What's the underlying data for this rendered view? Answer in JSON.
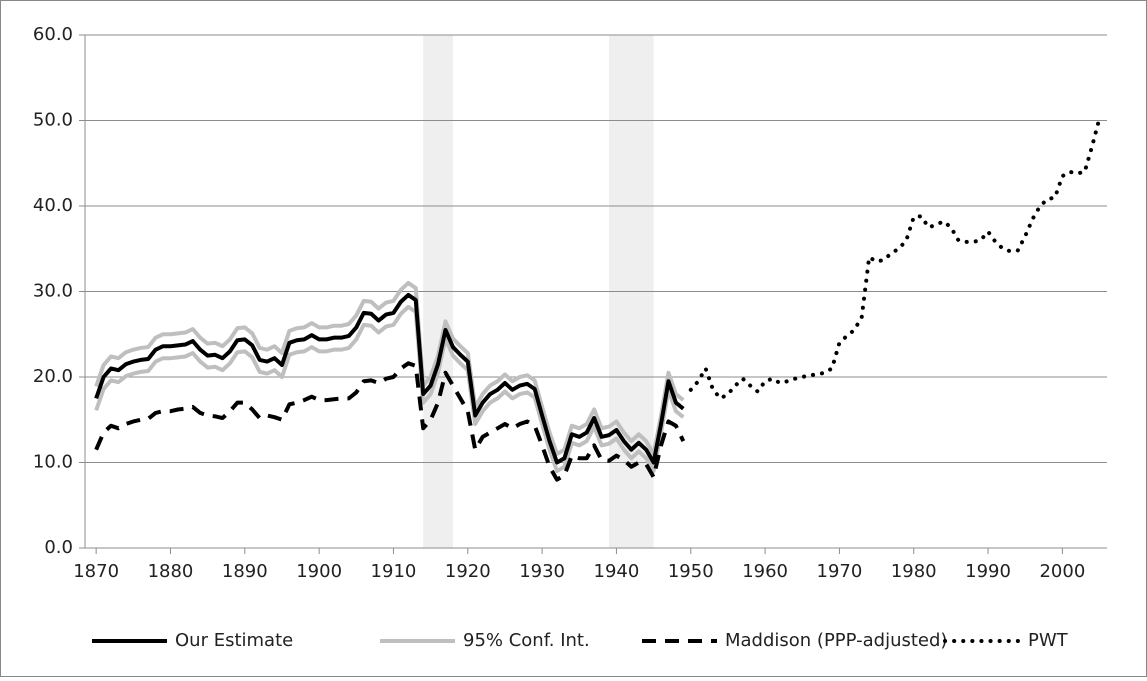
{
  "chart_data": {
    "type": "line",
    "xlim": [
      1868.5,
      2006
    ],
    "xticks": [
      1870,
      1880,
      1890,
      1900,
      1910,
      1920,
      1930,
      1940,
      1950,
      1960,
      1970,
      1980,
      1990,
      2000
    ],
    "ylim": [
      0,
      60
    ],
    "yticks": [
      {
        "value": 0,
        "label": "0.0"
      },
      {
        "value": 10,
        "label": "10.0"
      },
      {
        "value": 20,
        "label": "20.0"
      },
      {
        "value": 30,
        "label": "30.0"
      },
      {
        "value": 40,
        "label": "40.0"
      },
      {
        "value": 50,
        "label": "50.0"
      },
      {
        "value": 60,
        "label": "60.0"
      }
    ],
    "grid": true,
    "legend": "bottom",
    "shaded_periods": [
      [
        1914,
        1918
      ],
      [
        1939,
        1945
      ]
    ],
    "shade_color": "#efefef",
    "series": [
      {
        "name": "95% Conf. Int.",
        "color": "#bfbfbf",
        "style": "solid",
        "x": [
          1870,
          1871,
          1872,
          1873,
          1874,
          1875,
          1876,
          1877,
          1878,
          1879,
          1880,
          1881,
          1882,
          1883,
          1884,
          1885,
          1886,
          1887,
          1888,
          1889,
          1890,
          1891,
          1892,
          1893,
          1894,
          1895,
          1896,
          1897,
          1898,
          1899,
          1900,
          1901,
          1902,
          1903,
          1904,
          1905,
          1906,
          1907,
          1908,
          1909,
          1910,
          1911,
          1912,
          1913,
          1914,
          1915,
          1916,
          1917,
          1918,
          1919,
          1920,
          1921,
          1922,
          1923,
          1924,
          1925,
          1926,
          1927,
          1928,
          1929,
          1930,
          1931,
          1932,
          1933,
          1934,
          1935,
          1936,
          1937,
          1938,
          1939,
          1940,
          1941,
          1942,
          1943,
          1944,
          1945,
          1946,
          1947,
          1948,
          1949
        ],
        "upper": [
          18.9,
          21.4,
          22.4,
          22.2,
          22.9,
          23.2,
          23.4,
          23.5,
          24.6,
          25,
          25,
          25.1,
          25.2,
          25.6,
          24.6,
          23.9,
          24,
          23.6,
          24.4,
          25.7,
          25.8,
          25.1,
          23.4,
          23.2,
          23.6,
          22.8,
          25.4,
          25.7,
          25.8,
          26.3,
          25.8,
          25.8,
          26,
          26,
          26.2,
          27.2,
          28.9,
          28.8,
          28,
          28.7,
          28.9,
          30.2,
          31,
          30.4,
          19,
          20,
          22.5,
          26.5,
          24.5,
          23.6,
          22.8,
          16.5,
          18,
          19,
          19.5,
          20.3,
          19.5,
          20,
          20.2,
          19.6,
          16.5,
          13.5,
          11,
          11.5,
          14.3,
          14,
          14.5,
          16.2,
          14,
          14.2,
          14.8,
          13.5,
          12.5,
          13.3,
          12.5,
          11,
          15.5,
          20.5,
          18,
          17.3
        ],
        "lower": [
          16.1,
          18.6,
          19.6,
          19.4,
          20.1,
          20.4,
          20.6,
          20.7,
          21.8,
          22.2,
          22.2,
          22.3,
          22.4,
          22.8,
          21.8,
          21.1,
          21.2,
          20.8,
          21.6,
          22.9,
          23,
          22.3,
          20.6,
          20.4,
          20.8,
          20,
          22.6,
          22.9,
          23,
          23.5,
          23,
          23,
          23.2,
          23.2,
          23.4,
          24.4,
          26.1,
          26,
          25.2,
          25.9,
          26.1,
          27.4,
          28.2,
          27.6,
          17,
          18,
          20.5,
          24.5,
          22.5,
          21.6,
          20.8,
          14.5,
          16,
          17,
          17.5,
          18.3,
          17.5,
          18,
          18.2,
          17.6,
          14.5,
          11.5,
          9,
          9.5,
          12.3,
          12,
          12.5,
          14.2,
          12,
          12.2,
          12.8,
          11.5,
          10.5,
          11.3,
          10.5,
          9,
          13.5,
          18.5,
          16,
          15.3
        ]
      },
      {
        "name": "Our Estimate",
        "color": "#000000",
        "style": "solid",
        "x": [
          1870,
          1871,
          1872,
          1873,
          1874,
          1875,
          1876,
          1877,
          1878,
          1879,
          1880,
          1881,
          1882,
          1883,
          1884,
          1885,
          1886,
          1887,
          1888,
          1889,
          1890,
          1891,
          1892,
          1893,
          1894,
          1895,
          1896,
          1897,
          1898,
          1899,
          1900,
          1901,
          1902,
          1903,
          1904,
          1905,
          1906,
          1907,
          1908,
          1909,
          1910,
          1911,
          1912,
          1913,
          1914,
          1915,
          1916,
          1917,
          1918,
          1919,
          1920,
          1921,
          1922,
          1923,
          1924,
          1925,
          1926,
          1927,
          1928,
          1929,
          1930,
          1931,
          1932,
          1933,
          1934,
          1935,
          1936,
          1937,
          1938,
          1939,
          1940,
          1941,
          1942,
          1943,
          1944,
          1945,
          1946,
          1947,
          1948,
          1949
        ],
        "values": [
          17.5,
          20,
          21,
          20.8,
          21.5,
          21.8,
          22,
          22.1,
          23.2,
          23.6,
          23.6,
          23.7,
          23.8,
          24.2,
          23.2,
          22.5,
          22.6,
          22.2,
          23,
          24.3,
          24.4,
          23.7,
          22,
          21.8,
          22.2,
          21.4,
          24,
          24.3,
          24.4,
          24.9,
          24.4,
          24.4,
          24.6,
          24.6,
          24.8,
          25.8,
          27.5,
          27.4,
          26.6,
          27.3,
          27.5,
          28.8,
          29.6,
          29,
          18,
          19,
          21.5,
          25.5,
          23.5,
          22.6,
          21.8,
          15.5,
          17,
          18,
          18.5,
          19.3,
          18.5,
          19,
          19.2,
          18.6,
          15.5,
          12.5,
          10,
          10.5,
          13.3,
          13,
          13.5,
          15.2,
          13,
          13.2,
          13.8,
          12.5,
          11.5,
          12.3,
          11.5,
          10,
          14.5,
          19.5,
          17,
          16.3
        ]
      },
      {
        "name": "Maddison (PPP-adjusted)",
        "color": "#000000",
        "style": "dashed",
        "x": [
          1870,
          1871,
          1872,
          1873,
          1874,
          1875,
          1876,
          1877,
          1878,
          1879,
          1880,
          1881,
          1882,
          1883,
          1884,
          1885,
          1886,
          1887,
          1888,
          1889,
          1890,
          1891,
          1892,
          1893,
          1894,
          1895,
          1896,
          1897,
          1898,
          1899,
          1900,
          1901,
          1902,
          1903,
          1904,
          1905,
          1906,
          1907,
          1908,
          1909,
          1910,
          1911,
          1912,
          1913,
          1914,
          1915,
          1916,
          1917,
          1918,
          1919,
          1920,
          1921,
          1922,
          1923,
          1924,
          1925,
          1926,
          1927,
          1928,
          1929,
          1930,
          1931,
          1932,
          1933,
          1934,
          1935,
          1936,
          1937,
          1938,
          1939,
          1940,
          1941,
          1942,
          1943,
          1944,
          1945,
          1946,
          1947,
          1948,
          1949
        ],
        "values": [
          11.5,
          13.5,
          14.3,
          14,
          14.5,
          14.8,
          15,
          15.1,
          15.8,
          16,
          16,
          16.2,
          16.3,
          16.5,
          15.8,
          15.5,
          15.4,
          15.2,
          16,
          17,
          17,
          16.2,
          15.2,
          15.5,
          15.3,
          15,
          16.8,
          17,
          17.3,
          17.7,
          17.3,
          17.3,
          17.4,
          17.5,
          17.5,
          18.2,
          19.5,
          19.6,
          19.3,
          19.8,
          20,
          21,
          21.6,
          21.3,
          14,
          15,
          17,
          20.5,
          19,
          17.5,
          16,
          11.5,
          13,
          13.5,
          14,
          14.5,
          14,
          14.5,
          14.8,
          14.3,
          12,
          9.5,
          8,
          8.5,
          10.8,
          10.5,
          10.5,
          12,
          10.3,
          10.2,
          10.8,
          10.3,
          9.5,
          10,
          9.8,
          8.3,
          12,
          14.8,
          14.3,
          12.5
        ]
      },
      {
        "name": "PWT",
        "color": "#000000",
        "style": "dotted",
        "x": [
          1950,
          1951,
          1952,
          1953,
          1954,
          1955,
          1956,
          1957,
          1958,
          1959,
          1960,
          1961,
          1962,
          1963,
          1964,
          1965,
          1966,
          1967,
          1968,
          1969,
          1970,
          1971,
          1972,
          1973,
          1974,
          1975,
          1976,
          1977,
          1978,
          1979,
          1980,
          1981,
          1982,
          1983,
          1984,
          1985,
          1986,
          1987,
          1988,
          1989,
          1990,
          1991,
          1992,
          1993,
          1994,
          1995,
          1996,
          1997,
          1998,
          1999,
          2000,
          2001,
          2002,
          2003,
          2004,
          2005
        ],
        "values": [
          18.5,
          19.5,
          21,
          18.5,
          17.5,
          18,
          19,
          19.8,
          19,
          18.3,
          19.5,
          19.8,
          19.3,
          19.5,
          19.8,
          20,
          20.2,
          20.3,
          20.5,
          21,
          24,
          24.8,
          25.5,
          27,
          34,
          33.5,
          33.7,
          34.5,
          35,
          36,
          38.7,
          38.8,
          37.5,
          37.8,
          38.2,
          37.5,
          36,
          35.8,
          35.8,
          36,
          37,
          35.8,
          35,
          34.7,
          34.8,
          36.5,
          38.5,
          40,
          40.8,
          41,
          43.5,
          44,
          43.8,
          44,
          47,
          50.3
        ]
      }
    ],
    "legend_order": [
      1,
      0,
      2,
      3
    ]
  }
}
